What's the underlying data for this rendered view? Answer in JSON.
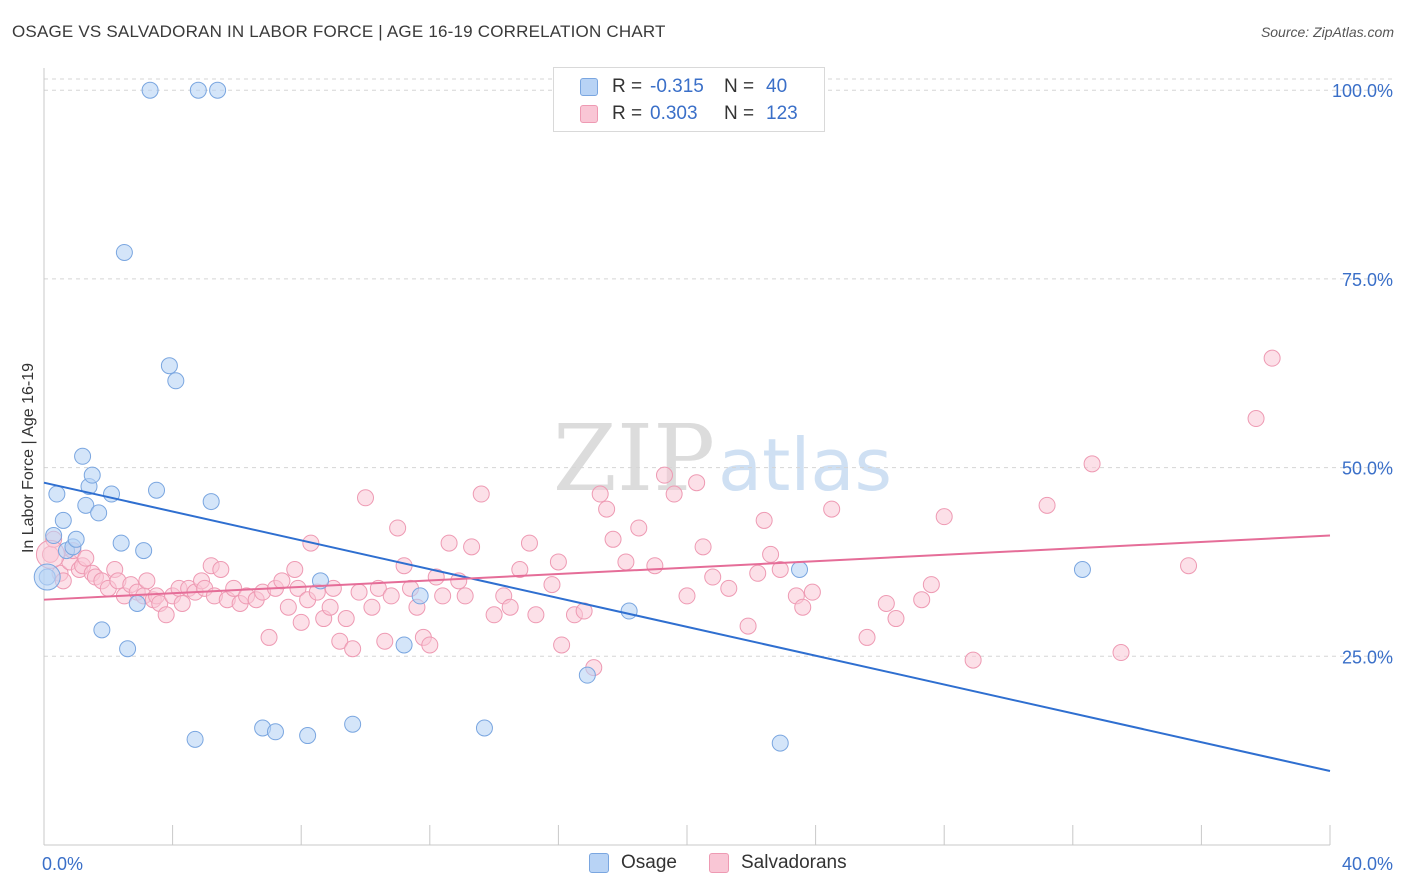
{
  "title": "OSAGE VS SALVADORAN IN LABOR FORCE | AGE 16-19 CORRELATION CHART",
  "source": "Source: ZipAtlas.com",
  "watermark": {
    "zip": "ZIP",
    "atlas": "atlas"
  },
  "legend_top": [
    {
      "r_label": "R =",
      "r_value": "-0.315",
      "n_label": "N =",
      "n_value": "40"
    },
    {
      "r_label": "R =",
      "r_value": "0.303",
      "n_label": "N =",
      "n_value": "123"
    }
  ],
  "legend_bottom": [
    "Osage",
    "Salvadorans"
  ],
  "colors": {
    "osage_fill": "#b8d3f5",
    "osage_stroke": "#7aa6e0",
    "osage_line": "#2f6fd0",
    "salv_fill": "#f9c6d5",
    "salv_stroke": "#ee9ab3",
    "salv_line": "#e56d98",
    "tick_text": "#3a6fc8",
    "grid": "#d5d5d5"
  },
  "chart_data": {
    "type": "scatter",
    "title": "OSAGE VS SALVADORAN IN LABOR FORCE | AGE 16-19 CORRELATION CHART",
    "xlabel": "",
    "ylabel": "In Labor Force | Age 16-19",
    "xlim": [
      0,
      40
    ],
    "ylim": [
      0,
      104
    ],
    "x_tick_labels": [
      "0.0%",
      "40.0%"
    ],
    "y_ticks": [
      25,
      50,
      75,
      100
    ],
    "y_tick_labels": [
      "25.0%",
      "50.0%",
      "75.0%",
      "100.0%"
    ],
    "grid": true,
    "legend_position": "bottom",
    "series": [
      {
        "name": "Osage",
        "r": -0.315,
        "n": 40,
        "trend": {
          "x": [
            0,
            40
          ],
          "y": [
            48.0,
            9.8
          ]
        },
        "points": [
          [
            0.1,
            35.5
          ],
          [
            0.3,
            41.0
          ],
          [
            0.4,
            46.5
          ],
          [
            0.6,
            43.0
          ],
          [
            0.7,
            39.0
          ],
          [
            0.9,
            39.5
          ],
          [
            1.0,
            40.5
          ],
          [
            1.3,
            45.0
          ],
          [
            1.4,
            47.5
          ],
          [
            1.5,
            49.0
          ],
          [
            1.7,
            44.0
          ],
          [
            1.8,
            28.5
          ],
          [
            2.1,
            46.5
          ],
          [
            2.4,
            40.0
          ],
          [
            2.5,
            78.5
          ],
          [
            2.6,
            26.0
          ],
          [
            2.9,
            32.0
          ],
          [
            3.1,
            39.0
          ],
          [
            3.3,
            100.0
          ],
          [
            3.5,
            47.0
          ],
          [
            3.9,
            63.5
          ],
          [
            4.1,
            61.5
          ],
          [
            4.7,
            14.0
          ],
          [
            4.8,
            100.0
          ],
          [
            5.2,
            45.5
          ],
          [
            5.4,
            100.0
          ],
          [
            6.8,
            15.5
          ],
          [
            7.2,
            15.0
          ],
          [
            8.2,
            14.5
          ],
          [
            8.6,
            35.0
          ],
          [
            9.6,
            16.0
          ],
          [
            11.2,
            26.5
          ],
          [
            11.7,
            33.0
          ],
          [
            13.7,
            15.5
          ],
          [
            16.9,
            22.5
          ],
          [
            18.2,
            31.0
          ],
          [
            22.9,
            13.5
          ],
          [
            23.5,
            36.5
          ],
          [
            32.3,
            36.5
          ],
          [
            1.2,
            51.5
          ]
        ]
      },
      {
        "name": "Salvadorans",
        "r": 0.303,
        "n": 123,
        "trend": {
          "x": [
            0,
            40
          ],
          "y": [
            32.5,
            41.0
          ]
        },
        "points": [
          [
            0.2,
            38.5
          ],
          [
            0.3,
            40.5
          ],
          [
            0.5,
            36.0
          ],
          [
            0.6,
            35.0
          ],
          [
            0.8,
            37.5
          ],
          [
            0.9,
            39.0
          ],
          [
            1.1,
            36.5
          ],
          [
            1.2,
            37.0
          ],
          [
            1.3,
            38.0
          ],
          [
            1.5,
            36.0
          ],
          [
            1.6,
            35.5
          ],
          [
            1.8,
            35.0
          ],
          [
            2.0,
            34.0
          ],
          [
            2.2,
            36.5
          ],
          [
            2.3,
            35.0
          ],
          [
            2.5,
            33.0
          ],
          [
            2.7,
            34.5
          ],
          [
            2.9,
            33.5
          ],
          [
            3.1,
            33.0
          ],
          [
            3.2,
            35.0
          ],
          [
            3.4,
            32.5
          ],
          [
            3.5,
            33.0
          ],
          [
            3.6,
            32.0
          ],
          [
            3.8,
            30.5
          ],
          [
            4.0,
            33.0
          ],
          [
            4.2,
            34.0
          ],
          [
            4.3,
            32.0
          ],
          [
            4.5,
            34.0
          ],
          [
            4.7,
            33.5
          ],
          [
            4.9,
            35.0
          ],
          [
            5.0,
            34.0
          ],
          [
            5.2,
            37.0
          ],
          [
            5.3,
            33.0
          ],
          [
            5.5,
            36.5
          ],
          [
            5.7,
            32.5
          ],
          [
            5.9,
            34.0
          ],
          [
            6.1,
            32.0
          ],
          [
            6.3,
            33.0
          ],
          [
            6.6,
            32.5
          ],
          [
            6.8,
            33.5
          ],
          [
            7.0,
            27.5
          ],
          [
            7.2,
            34.0
          ],
          [
            7.4,
            35.0
          ],
          [
            7.6,
            31.5
          ],
          [
            7.8,
            36.5
          ],
          [
            7.9,
            34.0
          ],
          [
            8.0,
            29.5
          ],
          [
            8.2,
            32.5
          ],
          [
            8.3,
            40.0
          ],
          [
            8.5,
            33.5
          ],
          [
            8.7,
            30.0
          ],
          [
            8.9,
            31.5
          ],
          [
            9.0,
            34.0
          ],
          [
            9.2,
            27.0
          ],
          [
            9.4,
            30.0
          ],
          [
            9.6,
            26.0
          ],
          [
            9.8,
            33.5
          ],
          [
            10.0,
            46.0
          ],
          [
            10.2,
            31.5
          ],
          [
            10.4,
            34.0
          ],
          [
            10.6,
            27.0
          ],
          [
            10.8,
            33.0
          ],
          [
            11.0,
            42.0
          ],
          [
            11.2,
            37.0
          ],
          [
            11.4,
            34.0
          ],
          [
            11.6,
            31.5
          ],
          [
            11.8,
            27.5
          ],
          [
            12.0,
            26.5
          ],
          [
            12.2,
            35.5
          ],
          [
            12.4,
            33.0
          ],
          [
            12.6,
            40.0
          ],
          [
            12.9,
            35.0
          ],
          [
            13.1,
            33.0
          ],
          [
            13.3,
            39.5
          ],
          [
            13.6,
            46.5
          ],
          [
            14.0,
            30.5
          ],
          [
            14.3,
            33.0
          ],
          [
            14.5,
            31.5
          ],
          [
            14.8,
            36.5
          ],
          [
            15.1,
            40.0
          ],
          [
            15.3,
            30.5
          ],
          [
            15.8,
            34.5
          ],
          [
            16.0,
            37.5
          ],
          [
            16.1,
            26.5
          ],
          [
            16.5,
            30.5
          ],
          [
            16.8,
            31.0
          ],
          [
            17.1,
            23.5
          ],
          [
            17.3,
            46.5
          ],
          [
            17.5,
            44.5
          ],
          [
            17.7,
            40.5
          ],
          [
            18.1,
            37.5
          ],
          [
            18.5,
            42.0
          ],
          [
            19.0,
            37.0
          ],
          [
            19.3,
            49.0
          ],
          [
            19.6,
            46.5
          ],
          [
            20.0,
            33.0
          ],
          [
            20.3,
            48.0
          ],
          [
            20.5,
            39.5
          ],
          [
            20.8,
            35.5
          ],
          [
            21.3,
            34.0
          ],
          [
            21.9,
            29.0
          ],
          [
            22.2,
            36.0
          ],
          [
            22.4,
            43.0
          ],
          [
            22.6,
            38.5
          ],
          [
            22.9,
            36.5
          ],
          [
            23.4,
            33.0
          ],
          [
            23.6,
            31.5
          ],
          [
            23.9,
            33.5
          ],
          [
            24.5,
            44.5
          ],
          [
            25.6,
            27.5
          ],
          [
            26.2,
            32.0
          ],
          [
            26.5,
            30.0
          ],
          [
            27.3,
            32.5
          ],
          [
            27.6,
            34.5
          ],
          [
            28.0,
            43.5
          ],
          [
            28.9,
            24.5
          ],
          [
            31.2,
            45.0
          ],
          [
            32.6,
            50.5
          ],
          [
            33.5,
            25.5
          ],
          [
            35.6,
            37.0
          ],
          [
            37.7,
            56.5
          ],
          [
            38.2,
            64.5
          ]
        ]
      }
    ]
  }
}
